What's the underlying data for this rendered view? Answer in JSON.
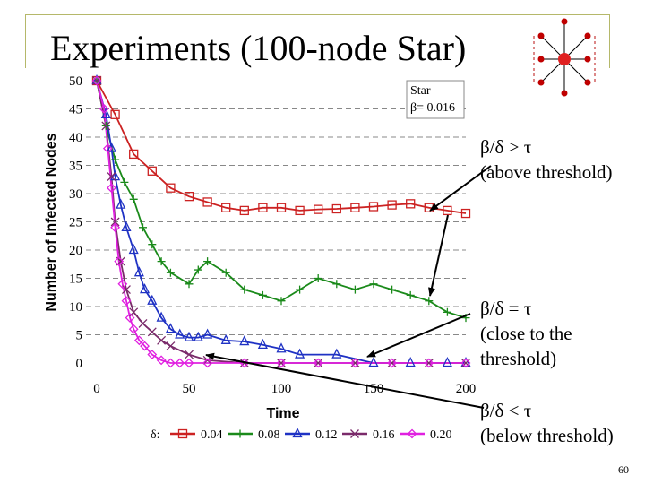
{
  "slide": {
    "title": "Experiments (100-node Star)",
    "page_number": "60"
  },
  "annotations": {
    "above": [
      "β/δ > τ",
      "(above threshold)"
    ],
    "close": [
      "β/δ = τ",
      "(close to the",
      "threshold)"
    ],
    "below": [
      "β/δ < τ",
      "(below threshold)"
    ]
  },
  "inset_label": [
    "Star",
    "β= 0.016"
  ],
  "colors": {
    "frame": "#b5b86a",
    "hub": "#e02020",
    "leaf": "#c00000",
    "dashed_group": "#d06060"
  },
  "chart_data": {
    "type": "line",
    "title": "",
    "xlabel": "Time",
    "ylabel": "Number of Infected Nodes",
    "xlim": [
      0,
      200
    ],
    "ylim": [
      0,
      50
    ],
    "xticks": [
      0,
      50,
      100,
      150,
      200
    ],
    "yticks": [
      0,
      5,
      10,
      15,
      20,
      25,
      30,
      35,
      40,
      45,
      50
    ],
    "grid": "horizontal dashed",
    "legend": {
      "prefix": "δ:",
      "placement": "bottom"
    },
    "series": [
      {
        "name": "0.04",
        "color": "#cc2222",
        "marker": "square",
        "x": [
          0,
          10,
          20,
          30,
          40,
          50,
          60,
          70,
          80,
          90,
          100,
          110,
          120,
          130,
          140,
          150,
          160,
          170,
          180,
          190,
          200
        ],
        "y": [
          50,
          44,
          37,
          34,
          31,
          29.5,
          28.5,
          27.5,
          27,
          27.5,
          27.5,
          27,
          27.2,
          27.3,
          27.5,
          27.7,
          28,
          28.2,
          27.5,
          27,
          26.5
        ]
      },
      {
        "name": "0.08",
        "color": "#1a8a1a",
        "marker": "plus",
        "x": [
          0,
          5,
          10,
          15,
          20,
          25,
          30,
          35,
          40,
          50,
          55,
          60,
          70,
          80,
          90,
          100,
          110,
          120,
          130,
          140,
          150,
          160,
          170,
          180,
          190,
          200
        ],
        "y": [
          50,
          42,
          36,
          32,
          29,
          24,
          21,
          18,
          16,
          14,
          16.5,
          18,
          16,
          13,
          12,
          11,
          13,
          15,
          14,
          13,
          14,
          13,
          12,
          11,
          9,
          8
        ]
      },
      {
        "name": "0.12",
        "color": "#1f32c4",
        "marker": "triangle",
        "x": [
          0,
          5,
          8,
          10,
          13,
          16,
          20,
          23,
          26,
          30,
          35,
          40,
          45,
          50,
          55,
          60,
          70,
          80,
          90,
          100,
          110,
          130,
          150,
          170,
          190,
          200
        ],
        "y": [
          50,
          44,
          38,
          33,
          28,
          24,
          20,
          16,
          13,
          11,
          8,
          6,
          5,
          4.5,
          4.5,
          5,
          4,
          3.8,
          3.2,
          2.5,
          1.5,
          1.5,
          0,
          0,
          0,
          0
        ]
      },
      {
        "name": "0.16",
        "color": "#7a2a6a",
        "marker": "x",
        "x": [
          0,
          5,
          8,
          10,
          13,
          16,
          20,
          25,
          30,
          35,
          40,
          50,
          60,
          80,
          100,
          120,
          140,
          160,
          180,
          200
        ],
        "y": [
          50,
          42,
          33,
          25,
          18,
          13,
          9,
          7,
          5.5,
          4,
          3,
          1.5,
          0.5,
          0,
          0,
          0,
          0,
          0,
          0,
          0
        ]
      },
      {
        "name": "0.20",
        "color": "#e020e0",
        "marker": "diamond",
        "x": [
          0,
          4,
          6,
          8,
          10,
          12,
          14,
          16,
          18,
          20,
          23,
          26,
          30,
          35,
          40,
          45,
          50,
          60,
          80,
          100,
          120,
          140,
          160,
          180,
          200
        ],
        "y": [
          50,
          45,
          38,
          31,
          24,
          18,
          14,
          11,
          8,
          6,
          4,
          3,
          1.5,
          0.5,
          0,
          0,
          0,
          0,
          0,
          0,
          0,
          0,
          0,
          0,
          0
        ]
      }
    ]
  }
}
